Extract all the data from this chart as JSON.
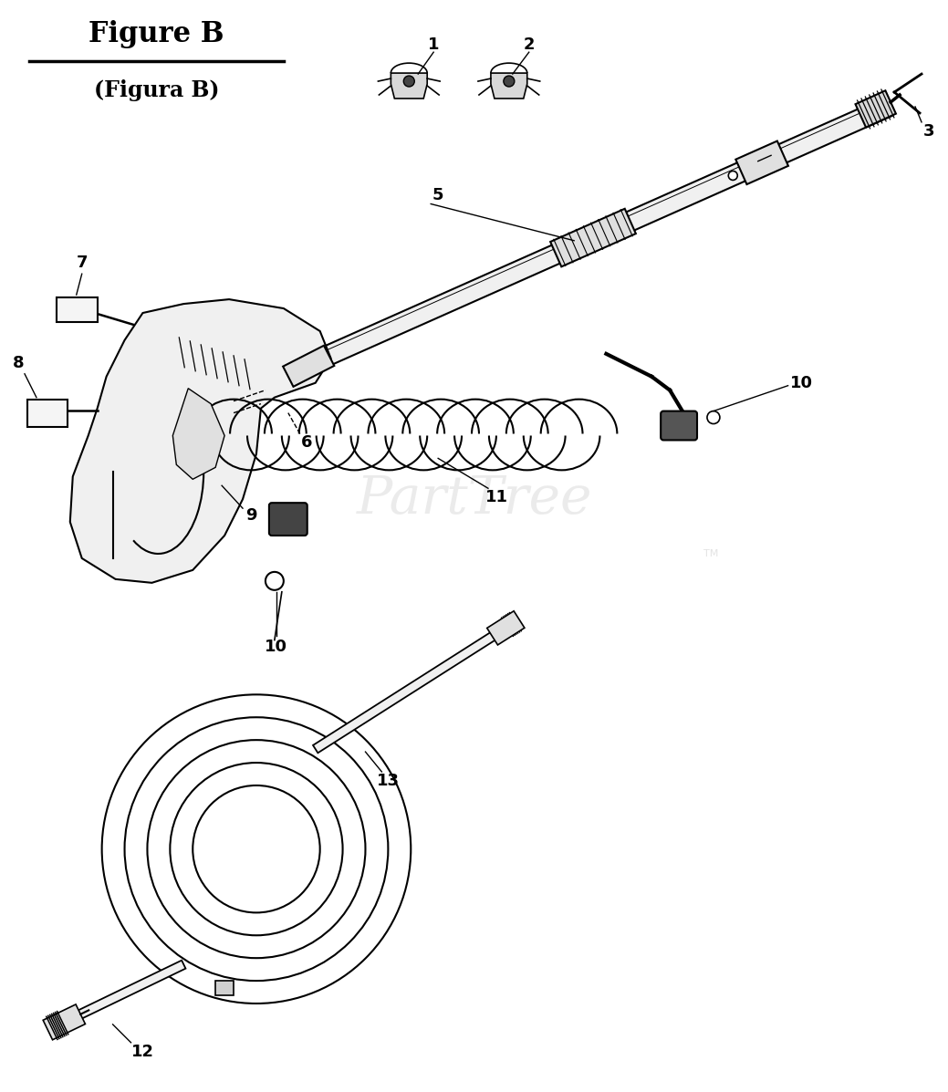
{
  "title": "Figure B",
  "subtitle": "(Figura B)",
  "bg": "#ffffff",
  "lc": "#000000",
  "watermark": "PartTree",
  "wm_color": "#c8c8c8",
  "fig_w": 10.39,
  "fig_h": 11.97
}
